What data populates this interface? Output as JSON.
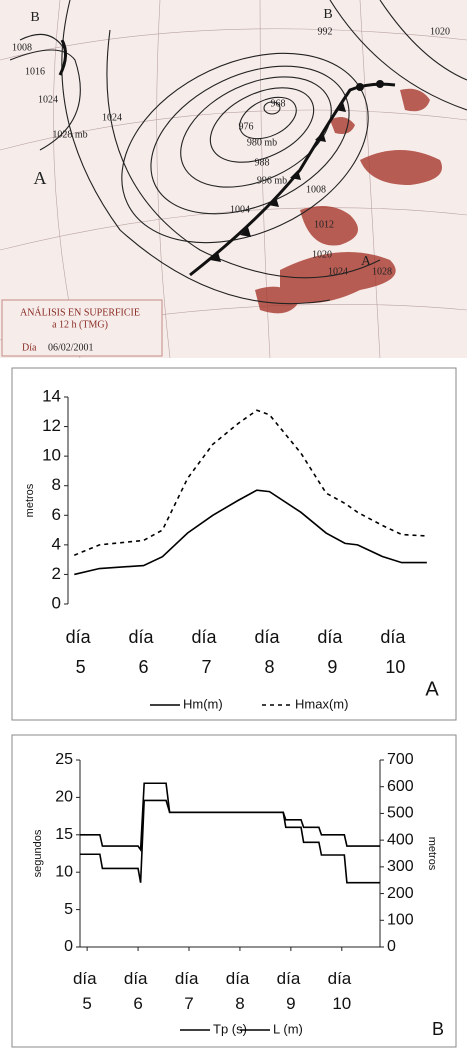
{
  "map": {
    "title_line1": "ANÁLISIS EN SUPERFICIE",
    "title_line2": "a 12 h (TMG)",
    "date_label": "Día",
    "date": "06/02/2001",
    "labels": [
      "B",
      "1008",
      "1016",
      "1024",
      "1028 mb",
      "1024",
      "A",
      "B",
      "992",
      "1020",
      "968",
      "976",
      "980 mb",
      "988",
      "996 mb",
      "1004",
      "1008",
      "1012",
      "1020",
      "1024",
      "1028",
      "A"
    ]
  },
  "chart_data": [
    {
      "type": "line",
      "panel": "A",
      "y_label": "metros",
      "x": [
        4.9,
        5.3,
        6.0,
        6.3,
        6.7,
        7.1,
        7.5,
        7.8,
        8.0,
        8.5,
        8.9,
        9.2,
        9.4,
        9.8,
        10.1,
        10.5
      ],
      "series": [
        {
          "name": "Hm(m)",
          "color": "#000000",
          "style": "solid",
          "values": [
            2.0,
            2.4,
            2.6,
            3.2,
            4.8,
            6.0,
            7.0,
            7.7,
            7.6,
            6.2,
            4.8,
            4.1,
            4.0,
            3.2,
            2.8,
            2.8
          ]
        },
        {
          "name": "Hmax(m)",
          "color": "#000000",
          "style": "dashed",
          "values": [
            3.3,
            4.0,
            4.3,
            5.0,
            8.5,
            10.8,
            12.2,
            13.1,
            12.8,
            10.2,
            7.5,
            6.8,
            6.2,
            5.3,
            4.7,
            4.6
          ]
        }
      ],
      "xlim": [
        4.8,
        10.55
      ],
      "xticks": [
        {
          "value": 5,
          "label": "día 5"
        },
        {
          "value": 6,
          "label": "día 6"
        },
        {
          "value": 7,
          "label": "día 7"
        },
        {
          "value": 8,
          "label": "día 8"
        },
        {
          "value": 9,
          "label": "día 9"
        },
        {
          "value": 10,
          "label": "día 10"
        }
      ],
      "ylim": [
        0,
        14
      ],
      "yticks": [
        0,
        2,
        4,
        6,
        8,
        10,
        12,
        14
      ],
      "legend": "bottom"
    },
    {
      "type": "line",
      "panel": "B",
      "y_label": "segundos",
      "y2_label": "metros",
      "series": [
        {
          "name": "Tp (s)",
          "color": "#000000",
          "style": "solid",
          "x": [
            4.86,
            5.25,
            5.3,
            6.0,
            6.05,
            6.12,
            6.55,
            6.62,
            8.85,
            8.9,
            9.2,
            9.25,
            9.55,
            9.6,
            10.05,
            10.1,
            10.75
          ],
          "values": [
            12.4,
            12.4,
            10.5,
            10.5,
            8.6,
            19.6,
            19.6,
            18,
            18,
            16,
            16,
            14,
            14,
            12.3,
            12.3,
            8.6,
            8.6
          ]
        },
        {
          "name": "L (m)",
          "color": "#000000",
          "style": "solid",
          "axis": "y2",
          "x": [
            4.86,
            5.25,
            5.3,
            6.0,
            6.05,
            6.12,
            6.55,
            6.62,
            8.85,
            8.9,
            9.2,
            9.25,
            9.55,
            9.6,
            10.05,
            10.1,
            10.75
          ],
          "values": [
            420,
            420,
            378,
            378,
            364,
            613,
            613,
            504,
            504,
            476,
            476,
            448,
            448,
            420,
            420,
            378,
            378
          ]
        }
      ],
      "xlim": [
        4.86,
        10.75
      ],
      "xticks": [
        {
          "value": 5,
          "label": "día 5"
        },
        {
          "value": 6,
          "label": "día 6"
        },
        {
          "value": 7,
          "label": "día 7"
        },
        {
          "value": 8,
          "label": "día 8"
        },
        {
          "value": 9,
          "label": "día 9"
        },
        {
          "value": 10,
          "label": "día 10"
        }
      ],
      "ylim": [
        0,
        25
      ],
      "yticks": [
        0,
        5,
        10,
        15,
        20,
        25
      ],
      "y2lim": [
        0,
        700
      ],
      "y2ticks": [
        0,
        100,
        200,
        300,
        400,
        500,
        600,
        700
      ],
      "legend": "bottom"
    }
  ]
}
